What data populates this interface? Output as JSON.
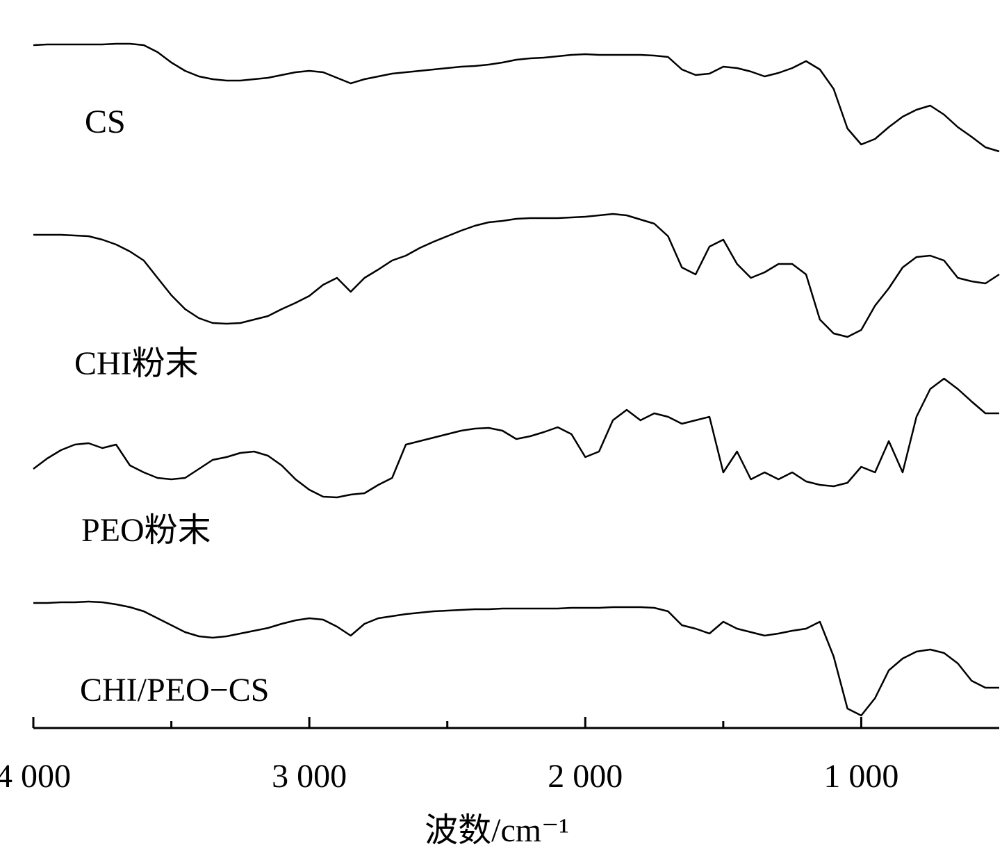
{
  "chart_data": {
    "type": "line",
    "x_label": "波数/cm⁻¹",
    "xlim": [
      4000,
      500
    ],
    "ylim": [
      0,
      1000
    ],
    "xticks": [
      {
        "value": 4000,
        "label": "4 000"
      },
      {
        "value": 3000,
        "label": "3 000"
      },
      {
        "value": 2000,
        "label": "2 000"
      },
      {
        "value": 1000,
        "label": "1 000"
      }
    ],
    "xminor_ticks": [
      3500,
      2500,
      1500
    ],
    "grid": false,
    "x": [
      4000,
      3950,
      3900,
      3850,
      3800,
      3750,
      3700,
      3650,
      3600,
      3550,
      3500,
      3450,
      3400,
      3350,
      3300,
      3250,
      3200,
      3150,
      3100,
      3050,
      3000,
      2950,
      2900,
      2850,
      2800,
      2750,
      2700,
      2650,
      2600,
      2550,
      2500,
      2450,
      2400,
      2350,
      2300,
      2250,
      2200,
      2150,
      2100,
      2050,
      2000,
      1950,
      1900,
      1850,
      1800,
      1750,
      1700,
      1650,
      1600,
      1550,
      1500,
      1450,
      1400,
      1350,
      1300,
      1250,
      1200,
      1150,
      1100,
      1050,
      1000,
      950,
      900,
      850,
      800,
      750,
      700,
      650,
      600,
      550,
      500
    ],
    "series": [
      {
        "name": "CS",
        "color": "#000000",
        "values": [
          983,
          984,
          984,
          984,
          984,
          984,
          985,
          985,
          983,
          973,
          958,
          946,
          938,
          934,
          932,
          932,
          934,
          936,
          940,
          944,
          946,
          944,
          936,
          928,
          934,
          938,
          942,
          944,
          946,
          948,
          950,
          952,
          953,
          955,
          958,
          962,
          964,
          965,
          967,
          969,
          970,
          969,
          969,
          969,
          969,
          968,
          966,
          948,
          940,
          942,
          952,
          950,
          945,
          938,
          943,
          950,
          960,
          948,
          920,
          863,
          840,
          848,
          865,
          880,
          890,
          896,
          883,
          865,
          851,
          836,
          830
        ]
      },
      {
        "name": "CHI粉末",
        "color": "#000000",
        "values": [
          710,
          710,
          710,
          709,
          708,
          703,
          696,
          686,
          673,
          648,
          623,
          603,
          590,
          583,
          582,
          583,
          588,
          593,
          603,
          612,
          622,
          638,
          648,
          628,
          648,
          660,
          673,
          680,
          691,
          700,
          708,
          716,
          723,
          728,
          730,
          733,
          734,
          734,
          734,
          735,
          736,
          738,
          740,
          738,
          732,
          726,
          708,
          663,
          653,
          693,
          703,
          668,
          648,
          656,
          668,
          668,
          653,
          588,
          568,
          563,
          573,
          608,
          633,
          663,
          678,
          680,
          673,
          648,
          643,
          640,
          653
        ]
      },
      {
        "name": "PEO粉末",
        "color": "#000000",
        "values": [
          373,
          388,
          400,
          408,
          410,
          403,
          408,
          378,
          368,
          360,
          358,
          360,
          373,
          386,
          390,
          396,
          398,
          392,
          378,
          358,
          343,
          333,
          332,
          336,
          338,
          350,
          360,
          408,
          413,
          418,
          423,
          428,
          431,
          432,
          428,
          416,
          420,
          426,
          433,
          423,
          390,
          398,
          443,
          458,
          443,
          453,
          448,
          438,
          443,
          448,
          368,
          398,
          358,
          368,
          358,
          368,
          355,
          350,
          348,
          353,
          376,
          368,
          413,
          368,
          448,
          488,
          503,
          488,
          470,
          453,
          453
        ]
      },
      {
        "name": "CHI/PEO−CS",
        "color": "#000000",
        "values": [
          180,
          180,
          181,
          181,
          182,
          181,
          178,
          174,
          168,
          158,
          148,
          138,
          132,
          130,
          132,
          136,
          140,
          144,
          150,
          155,
          158,
          156,
          146,
          133,
          150,
          158,
          161,
          164,
          166,
          168,
          169,
          170,
          171,
          171,
          172,
          172,
          172,
          172,
          172,
          173,
          173,
          173,
          174,
          174,
          174,
          173,
          168,
          148,
          143,
          136,
          153,
          143,
          138,
          133,
          136,
          140,
          143,
          153,
          103,
          28,
          18,
          43,
          83,
          100,
          110,
          113,
          108,
          93,
          68,
          58,
          58
        ]
      }
    ]
  }
}
